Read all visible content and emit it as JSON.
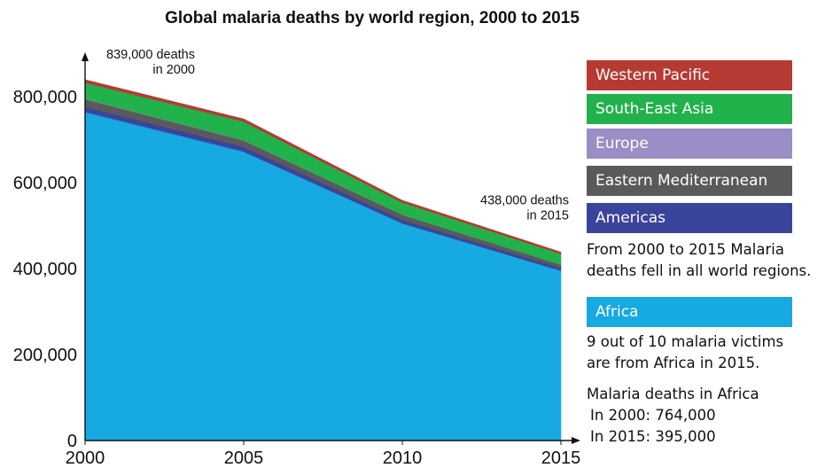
{
  "chart_data": {
    "type": "area",
    "stacked": true,
    "title": "Global malaria deaths by world region, 2000 to 2015",
    "xlabel": "",
    "ylabel": "",
    "x": [
      2000,
      2005,
      2010,
      2015
    ],
    "x_ticks": [
      "2000",
      "2005",
      "2010",
      "2015"
    ],
    "y_ticks": [
      "0",
      "200,000",
      "400,000",
      "600,000",
      "800,000"
    ],
    "y_tick_values": [
      0,
      200000,
      400000,
      600000,
      800000
    ],
    "ylim": [
      0,
      880000
    ],
    "xlim": [
      2000,
      2015
    ],
    "grid": false,
    "legend_placement": "right",
    "series": [
      {
        "name": "Africa",
        "color": "#17a9e1",
        "values": [
          764000,
          672000,
          505000,
          395000
        ]
      },
      {
        "name": "Americas",
        "color": "#3b449b",
        "values": [
          12000,
          11000,
          8000,
          6000
        ]
      },
      {
        "name": "Eastern Mediterranean",
        "color": "#5a5a5a",
        "values": [
          18000,
          15000,
          12000,
          8000
        ]
      },
      {
        "name": "Europe",
        "color": "#9b8dc6",
        "values": [
          1000,
          700,
          300,
          100
        ]
      },
      {
        "name": "South-East Asia",
        "color": "#22b24c",
        "values": [
          37000,
          43000,
          28000,
          25000
        ]
      },
      {
        "name": "Western Pacific",
        "color": "#b53a33",
        "values": [
          7000,
          6000,
          5000,
          4000
        ]
      }
    ],
    "annotations": [
      {
        "x": 2000,
        "y": 839000,
        "lines": [
          "839,000 deaths",
          "in 2000"
        ]
      },
      {
        "x": 2015,
        "y": 438000,
        "lines": [
          "438,000 deaths",
          "in 2015"
        ]
      }
    ]
  },
  "legend": {
    "western_pacific": "Western Pacific",
    "south_east_asia": "South-East Asia",
    "europe": "Europe",
    "eastern_mediterranean": "Eastern Mediterranean",
    "americas": "Americas",
    "africa": "Africa"
  },
  "notes": {
    "regions_line1": "From 2000 to 2015 Malaria",
    "regions_line2": "deaths fell in all world regions.",
    "africa_line1": "9 out of 10 malaria victims",
    "africa_line2": "are from Africa in 2015.",
    "africa_deaths_heading": "Malaria deaths in Africa",
    "africa_2000": "In 2000: 764,000",
    "africa_2015": "In 2015: 395,000"
  },
  "colors": {
    "africa": "#17a9e1",
    "americas": "#3b449b",
    "eastern_mediterranean": "#5a5a5a",
    "europe": "#9b8dc6",
    "south_east_asia": "#22b24c",
    "western_pacific": "#b53a33",
    "axis": "#111111"
  }
}
